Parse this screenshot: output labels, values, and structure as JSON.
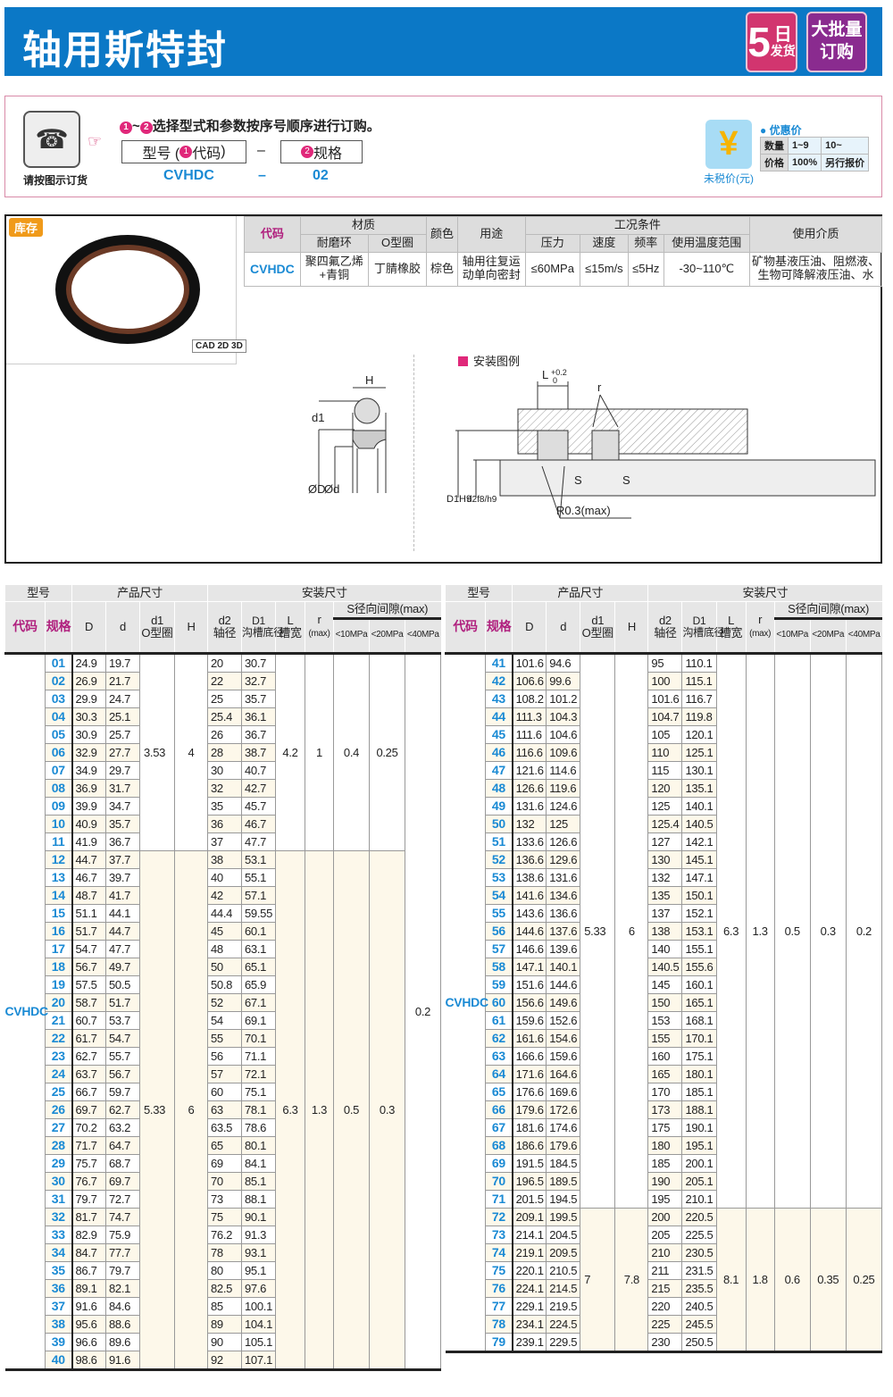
{
  "header": {
    "title": "轴用斯特封",
    "badge_days": "5",
    "badge_days_unit": "日",
    "badge_ship": "发货",
    "badge_bulk": "大批量",
    "badge_order": "订购",
    "color": "#0b78c6"
  },
  "order": {
    "phone_label": "请按图示订货",
    "instruction": "选择型式和参数按序号顺序进行订购。",
    "step1": "1",
    "step2": "2",
    "tilde": "~",
    "box1_prefix": "型号 (",
    "box1_label": "代码",
    "box1_suffix": ")",
    "dash": "–",
    "box2_label": "规格",
    "example_code": "CVHDC",
    "example_spec": "02",
    "price": {
      "title": "优惠价",
      "yen_label": "未税价(元)",
      "qty_label": "数量",
      "qty1": "1~9",
      "qty2": "10~",
      "price_label": "价格",
      "p1": "100%",
      "p2": "另行报价"
    }
  },
  "product": {
    "stock": "库存",
    "cad": "CAD 2D 3D",
    "spec": {
      "code_h": "代码",
      "material_h": "材质",
      "wear_ring_h": "耐磨环",
      "oring_h": "O型圈",
      "color_h": "颜色",
      "use_h": "用途",
      "cond_h": "工况条件",
      "pressure_h": "压力",
      "speed_h": "速度",
      "freq_h": "频率",
      "temp_h": "使用温度范围",
      "medium_h": "使用介质",
      "code": "CVHDC",
      "wear_ring": "聚四氟乙烯+青铜",
      "oring": "丁腈橡胶",
      "color": "棕色",
      "use": "轴用往复运动单向密封",
      "pressure": "≤60MPa",
      "speed": "≤15m/s",
      "freq": "≤5Hz",
      "temp": "-30~110℃",
      "medium": "矿物基液压油、阻燃液、生物可降解液压油、水"
    },
    "legend": "安装图例",
    "drawing_labels": {
      "H": "H",
      "d1": "d1",
      "D": "ØD",
      "d": "Ød",
      "L": "L",
      "L_tol_up": "+0.2",
      "L_tol_lo": "0",
      "r": "r",
      "S": "S",
      "D1": "D1H9",
      "d2": "d2f8/h9",
      "R": "R0.3(max)"
    }
  },
  "table_headers": {
    "model": "型号",
    "product_dim": "产品尺寸",
    "install_dim": "安装尺寸",
    "code": "代码",
    "spec": "规格",
    "D": "D",
    "d": "d",
    "d1": "d1",
    "d1_sub": "O型圈",
    "H": "H",
    "d2": "d2",
    "d2_sub": "轴径",
    "D1": "D1",
    "D1_sub": "沟槽底径",
    "L": "L",
    "L_sub": "槽宽",
    "r": "r",
    "r_sub": "(max)",
    "S": "S径向间隙(max)",
    "s10": "<10MPa",
    "s20": "<20MPa",
    "s40": "<40MPa"
  },
  "tables": [
    {
      "code": "CVHDC",
      "s40": "0.2",
      "groups": [
        {
          "d1": "3.53",
          "H": "4",
          "L": "4.2",
          "r": "1",
          "s10": "0.4",
          "s20": "0.25",
          "rows": [
            [
              "01",
              "24.9",
              "19.7",
              "20",
              "30.7"
            ],
            [
              "02",
              "26.9",
              "21.7",
              "22",
              "32.7"
            ],
            [
              "03",
              "29.9",
              "24.7",
              "25",
              "35.7"
            ],
            [
              "04",
              "30.3",
              "25.1",
              "25.4",
              "36.1"
            ],
            [
              "05",
              "30.9",
              "25.7",
              "26",
              "36.7"
            ],
            [
              "06",
              "32.9",
              "27.7",
              "28",
              "38.7"
            ],
            [
              "07",
              "34.9",
              "29.7",
              "30",
              "40.7"
            ],
            [
              "08",
              "36.9",
              "31.7",
              "32",
              "42.7"
            ],
            [
              "09",
              "39.9",
              "34.7",
              "35",
              "45.7"
            ],
            [
              "10",
              "40.9",
              "35.7",
              "36",
              "46.7"
            ],
            [
              "11",
              "41.9",
              "36.7",
              "37",
              "47.7"
            ]
          ]
        },
        {
          "d1": "5.33",
          "H": "6",
          "L": "6.3",
          "r": "1.3",
          "s10": "0.5",
          "s20": "0.3",
          "rows": [
            [
              "12",
              "44.7",
              "37.7",
              "38",
              "53.1"
            ],
            [
              "13",
              "46.7",
              "39.7",
              "40",
              "55.1"
            ],
            [
              "14",
              "48.7",
              "41.7",
              "42",
              "57.1"
            ],
            [
              "15",
              "51.1",
              "44.1",
              "44.4",
              "59.55"
            ],
            [
              "16",
              "51.7",
              "44.7",
              "45",
              "60.1"
            ],
            [
              "17",
              "54.7",
              "47.7",
              "48",
              "63.1"
            ],
            [
              "18",
              "56.7",
              "49.7",
              "50",
              "65.1"
            ],
            [
              "19",
              "57.5",
              "50.5",
              "50.8",
              "65.9"
            ],
            [
              "20",
              "58.7",
              "51.7",
              "52",
              "67.1"
            ],
            [
              "21",
              "60.7",
              "53.7",
              "54",
              "69.1"
            ],
            [
              "22",
              "61.7",
              "54.7",
              "55",
              "70.1"
            ],
            [
              "23",
              "62.7",
              "55.7",
              "56",
              "71.1"
            ],
            [
              "24",
              "63.7",
              "56.7",
              "57",
              "72.1"
            ],
            [
              "25",
              "66.7",
              "59.7",
              "60",
              "75.1"
            ],
            [
              "26",
              "69.7",
              "62.7",
              "63",
              "78.1"
            ],
            [
              "27",
              "70.2",
              "63.2",
              "63.5",
              "78.6"
            ],
            [
              "28",
              "71.7",
              "64.7",
              "65",
              "80.1"
            ],
            [
              "29",
              "75.7",
              "68.7",
              "69",
              "84.1"
            ],
            [
              "30",
              "76.7",
              "69.7",
              "70",
              "85.1"
            ],
            [
              "31",
              "79.7",
              "72.7",
              "73",
              "88.1"
            ],
            [
              "32",
              "81.7",
              "74.7",
              "75",
              "90.1"
            ],
            [
              "33",
              "82.9",
              "75.9",
              "76.2",
              "91.3"
            ],
            [
              "34",
              "84.7",
              "77.7",
              "78",
              "93.1"
            ],
            [
              "35",
              "86.7",
              "79.7",
              "80",
              "95.1"
            ],
            [
              "36",
              "89.1",
              "82.1",
              "82.5",
              "97.6"
            ],
            [
              "37",
              "91.6",
              "84.6",
              "85",
              "100.1"
            ],
            [
              "38",
              "95.6",
              "88.6",
              "89",
              "104.1"
            ],
            [
              "39",
              "96.6",
              "89.6",
              "90",
              "105.1"
            ],
            [
              "40",
              "98.6",
              "91.6",
              "92",
              "107.1"
            ]
          ]
        }
      ]
    },
    {
      "code": "CVHDC",
      "groups": [
        {
          "d1": "5.33",
          "H": "6",
          "L": "6.3",
          "r": "1.3",
          "s10": "0.5",
          "s20": "0.3",
          "s40": "0.2",
          "rows": [
            [
              "41",
              "101.6",
              "94.6",
              "95",
              "110.1"
            ],
            [
              "42",
              "106.6",
              "99.6",
              "100",
              "115.1"
            ],
            [
              "43",
              "108.2",
              "101.2",
              "101.6",
              "116.7"
            ],
            [
              "44",
              "111.3",
              "104.3",
              "104.7",
              "119.8"
            ],
            [
              "45",
              "111.6",
              "104.6",
              "105",
              "120.1"
            ],
            [
              "46",
              "116.6",
              "109.6",
              "110",
              "125.1"
            ],
            [
              "47",
              "121.6",
              "114.6",
              "115",
              "130.1"
            ],
            [
              "48",
              "126.6",
              "119.6",
              "120",
              "135.1"
            ],
            [
              "49",
              "131.6",
              "124.6",
              "125",
              "140.1"
            ],
            [
              "50",
              "132",
              "125",
              "125.4",
              "140.5"
            ],
            [
              "51",
              "133.6",
              "126.6",
              "127",
              "142.1"
            ],
            [
              "52",
              "136.6",
              "129.6",
              "130",
              "145.1"
            ],
            [
              "53",
              "138.6",
              "131.6",
              "132",
              "147.1"
            ],
            [
              "54",
              "141.6",
              "134.6",
              "135",
              "150.1"
            ],
            [
              "55",
              "143.6",
              "136.6",
              "137",
              "152.1"
            ],
            [
              "56",
              "144.6",
              "137.6",
              "138",
              "153.1"
            ],
            [
              "57",
              "146.6",
              "139.6",
              "140",
              "155.1"
            ],
            [
              "58",
              "147.1",
              "140.1",
              "140.5",
              "155.6"
            ],
            [
              "59",
              "151.6",
              "144.6",
              "145",
              "160.1"
            ],
            [
              "60",
              "156.6",
              "149.6",
              "150",
              "165.1"
            ],
            [
              "61",
              "159.6",
              "152.6",
              "153",
              "168.1"
            ],
            [
              "62",
              "161.6",
              "154.6",
              "155",
              "170.1"
            ],
            [
              "63",
              "166.6",
              "159.6",
              "160",
              "175.1"
            ],
            [
              "64",
              "171.6",
              "164.6",
              "165",
              "180.1"
            ],
            [
              "65",
              "176.6",
              "169.6",
              "170",
              "185.1"
            ],
            [
              "66",
              "179.6",
              "172.6",
              "173",
              "188.1"
            ],
            [
              "67",
              "181.6",
              "174.6",
              "175",
              "190.1"
            ],
            [
              "68",
              "186.6",
              "179.6",
              "180",
              "195.1"
            ],
            [
              "69",
              "191.5",
              "184.5",
              "185",
              "200.1"
            ],
            [
              "70",
              "196.5",
              "189.5",
              "190",
              "205.1"
            ],
            [
              "71",
              "201.5",
              "194.5",
              "195",
              "210.1"
            ]
          ]
        },
        {
          "d1": "7",
          "H": "7.8",
          "L": "8.1",
          "r": "1.8",
          "s10": "0.6",
          "s20": "0.35",
          "s40": "0.25",
          "rows": [
            [
              "72",
              "209.1",
              "199.5",
              "200",
              "220.5"
            ],
            [
              "73",
              "214.1",
              "204.5",
              "205",
              "225.5"
            ],
            [
              "74",
              "219.1",
              "209.5",
              "210",
              "230.5"
            ],
            [
              "75",
              "220.1",
              "210.5",
              "211",
              "231.5"
            ],
            [
              "76",
              "224.1",
              "214.5",
              "215",
              "235.5"
            ],
            [
              "77",
              "229.1",
              "219.5",
              "220",
              "240.5"
            ],
            [
              "78",
              "234.1",
              "224.5",
              "225",
              "245.5"
            ],
            [
              "79",
              "239.1",
              "229.5",
              "230",
              "250.5"
            ]
          ]
        }
      ]
    }
  ]
}
